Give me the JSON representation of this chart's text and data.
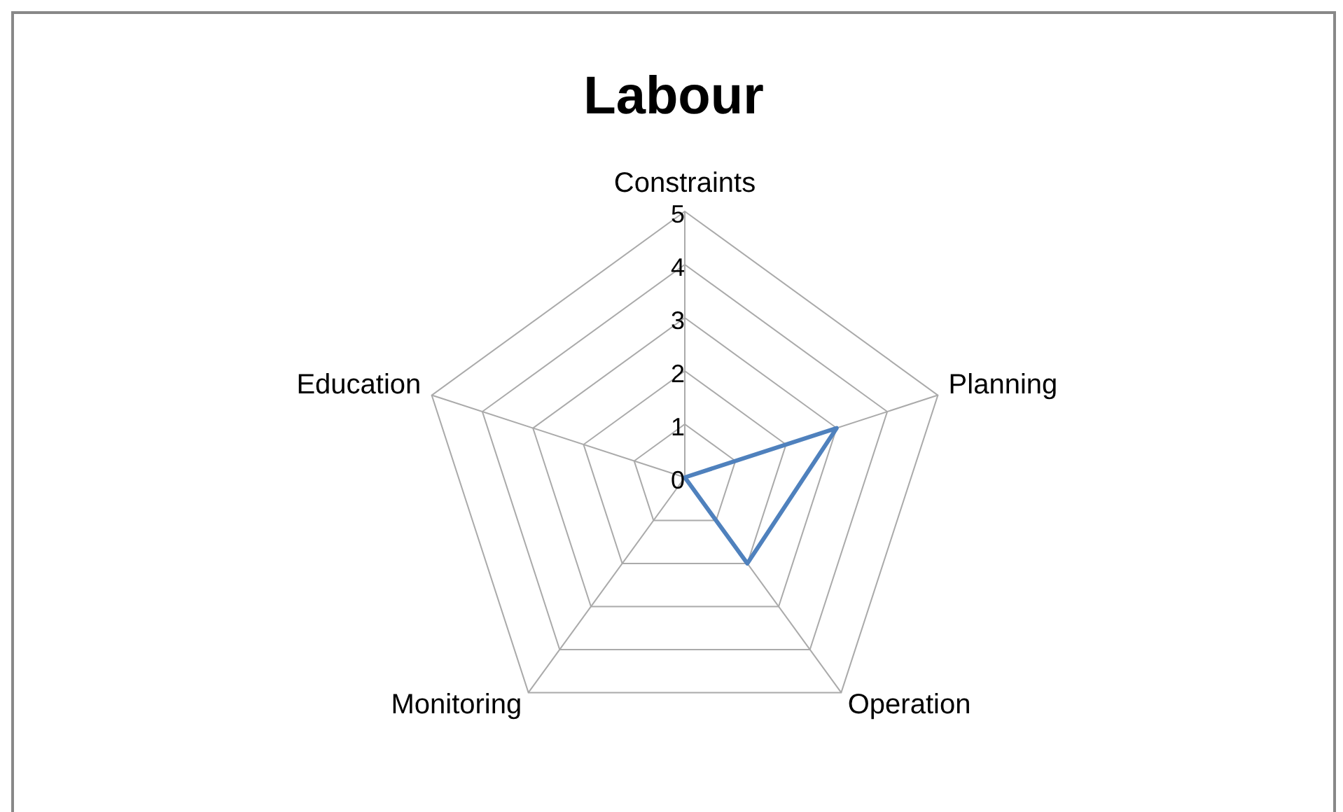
{
  "chart_data": {
    "type": "radar",
    "title": "Labour",
    "categories": [
      "Constraints",
      "Planning",
      "Operation",
      "Monitoring",
      "Education"
    ],
    "series": [
      {
        "color": "#4f81bd",
        "values": [
          0,
          3,
          2,
          0,
          0
        ]
      }
    ],
    "ylim": [
      0,
      5
    ],
    "yticks": [
      0,
      1,
      2,
      3,
      4,
      5
    ],
    "grid": true,
    "marker": "none",
    "line_style": "solid"
  }
}
